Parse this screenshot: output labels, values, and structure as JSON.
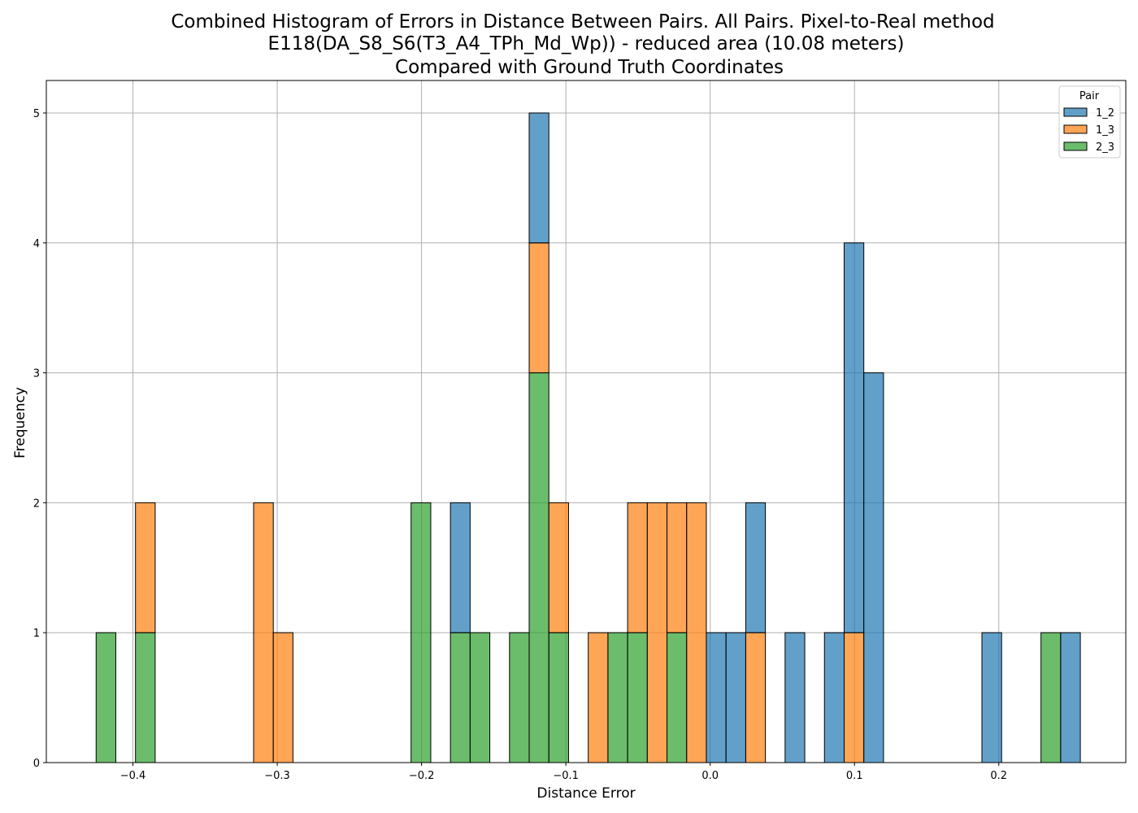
{
  "chart_data": {
    "type": "bar",
    "title_lines": [
      "Combined Histogram of Errors in Distance Between Pairs. All Pairs. Pixel-to-Real method",
      "E118(DA_S8_S6(T3_A4_TPh_Md_Wp)) - reduced area (10.08 meters)",
      "Compared with Ground Truth Coordinates"
    ],
    "xlabel": "Distance Error",
    "ylabel": "Frequency",
    "xlim": [
      -0.46,
      0.288
    ],
    "ylim": [
      0,
      5.25
    ],
    "x_ticks": [
      -0.4,
      -0.3,
      -0.2,
      -0.1,
      0.0,
      0.1,
      0.2
    ],
    "x_tick_labels": [
      "−0.4",
      "−0.3",
      "−0.2",
      "−0.1",
      "0.0",
      "0.1",
      "0.2"
    ],
    "y_ticks": [
      0,
      1,
      2,
      3,
      4,
      5
    ],
    "y_tick_labels": [
      "0",
      "1",
      "2",
      "3",
      "4",
      "5"
    ],
    "grid": true,
    "bin_start": -0.4255,
    "bin_width": 0.01364,
    "bin_count": 50,
    "legend": {
      "title": "Pair",
      "placement": "top-right",
      "entries": [
        "1_2",
        "1_3",
        "2_3"
      ]
    },
    "series": [
      {
        "name": "1_2",
        "color": "#1f77b4",
        "bins": [
          {
            "bin": 18,
            "count": 1
          },
          {
            "bin": 22,
            "count": 1
          },
          {
            "bin": 31,
            "count": 1
          },
          {
            "bin": 32,
            "count": 1
          },
          {
            "bin": 33,
            "count": 1
          },
          {
            "bin": 35,
            "count": 1
          },
          {
            "bin": 37,
            "count": 1
          },
          {
            "bin": 38,
            "count": 3
          },
          {
            "bin": 39,
            "count": 3
          },
          {
            "bin": 45,
            "count": 1
          },
          {
            "bin": 49,
            "count": 1
          }
        ]
      },
      {
        "name": "1_3",
        "color": "#ff7f0e",
        "bins": [
          {
            "bin": 2,
            "count": 1
          },
          {
            "bin": 8,
            "count": 2
          },
          {
            "bin": 9,
            "count": 1
          },
          {
            "bin": 22,
            "count": 1
          },
          {
            "bin": 23,
            "count": 1
          },
          {
            "bin": 25,
            "count": 1
          },
          {
            "bin": 27,
            "count": 1
          },
          {
            "bin": 28,
            "count": 2
          },
          {
            "bin": 29,
            "count": 1
          },
          {
            "bin": 30,
            "count": 2
          },
          {
            "bin": 33,
            "count": 1
          },
          {
            "bin": 38,
            "count": 1
          }
        ]
      },
      {
        "name": "2_3",
        "color": "#2ca02c",
        "bins": [
          {
            "bin": 0,
            "count": 1
          },
          {
            "bin": 2,
            "count": 1
          },
          {
            "bin": 16,
            "count": 2
          },
          {
            "bin": 18,
            "count": 1
          },
          {
            "bin": 19,
            "count": 1
          },
          {
            "bin": 21,
            "count": 1
          },
          {
            "bin": 22,
            "count": 3
          },
          {
            "bin": 23,
            "count": 1
          },
          {
            "bin": 26,
            "count": 1
          },
          {
            "bin": 27,
            "count": 1
          },
          {
            "bin": 29,
            "count": 1
          },
          {
            "bin": 48,
            "count": 1
          }
        ]
      }
    ]
  }
}
